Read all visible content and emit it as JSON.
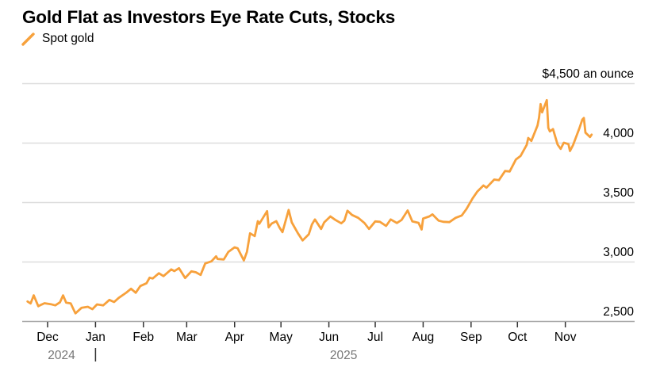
{
  "colors": {
    "accent_orange": "#F7A13C",
    "gridline": "#DDDDDD",
    "axis_line": "#A6A6A6",
    "tick_mark": "#333333",
    "label_text": "#000000",
    "year_text": "#767676"
  },
  "chart_data": {
    "type": "line",
    "title": "Gold Flat as Investors Eye Rate Cuts, Stocks",
    "grid": "horizontal",
    "legend_position": "top-left",
    "y_axis": {
      "side": "right",
      "range": [
        2450,
        4550
      ],
      "ticks": [
        {
          "value": 4500,
          "label": "$4,500 an ounce"
        },
        {
          "value": 4000,
          "label": "4,000"
        },
        {
          "value": 3500,
          "label": "3,500"
        },
        {
          "value": 3000,
          "label": "3,000"
        },
        {
          "value": 2500,
          "label": "2,500"
        }
      ]
    },
    "x_axis": {
      "start": "2024-11-18",
      "end": "2025-11-18",
      "month_ticks": [
        {
          "label": "Dec",
          "date": "2024-12-01"
        },
        {
          "label": "Jan",
          "date": "2025-01-01"
        },
        {
          "label": "Feb",
          "date": "2025-02-01"
        },
        {
          "label": "Mar",
          "date": "2025-03-01"
        },
        {
          "label": "Apr",
          "date": "2025-04-01"
        },
        {
          "label": "May",
          "date": "2025-05-01"
        },
        {
          "label": "Jun",
          "date": "2025-06-01"
        },
        {
          "label": "Jul",
          "date": "2025-07-01"
        },
        {
          "label": "Aug",
          "date": "2025-08-01"
        },
        {
          "label": "Sep",
          "date": "2025-09-01"
        },
        {
          "label": "Oct",
          "date": "2025-10-01"
        },
        {
          "label": "Nov",
          "date": "2025-11-01"
        }
      ],
      "year_labels": [
        {
          "label": "2024",
          "from": "2024-11-18",
          "to": "2025-01-01"
        },
        {
          "label": "2025",
          "from": "2025-01-01",
          "to": "2025-11-18"
        }
      ],
      "year_dividers": [
        "2025-01-01"
      ]
    },
    "series": [
      {
        "name": "Spot gold",
        "color": "#F7A13C",
        "points": [
          [
            "2024-11-18",
            2665
          ],
          [
            "2024-11-20",
            2648
          ],
          [
            "2024-11-22",
            2716
          ],
          [
            "2024-11-25",
            2625
          ],
          [
            "2024-11-27",
            2638
          ],
          [
            "2024-11-29",
            2650
          ],
          [
            "2024-12-03",
            2642
          ],
          [
            "2024-12-06",
            2632
          ],
          [
            "2024-12-09",
            2658
          ],
          [
            "2024-12-11",
            2716
          ],
          [
            "2024-12-13",
            2655
          ],
          [
            "2024-12-16",
            2648
          ],
          [
            "2024-12-18",
            2592
          ],
          [
            "2024-12-19",
            2565
          ],
          [
            "2024-12-23",
            2612
          ],
          [
            "2024-12-27",
            2620
          ],
          [
            "2024-12-30",
            2600
          ],
          [
            "2025-01-02",
            2640
          ],
          [
            "2025-01-06",
            2632
          ],
          [
            "2025-01-08",
            2655
          ],
          [
            "2025-01-10",
            2678
          ],
          [
            "2025-01-13",
            2660
          ],
          [
            "2025-01-16",
            2695
          ],
          [
            "2025-01-21",
            2740
          ],
          [
            "2025-01-24",
            2772
          ],
          [
            "2025-01-27",
            2738
          ],
          [
            "2025-01-30",
            2795
          ],
          [
            "2025-02-03",
            2818
          ],
          [
            "2025-02-05",
            2865
          ],
          [
            "2025-02-07",
            2858
          ],
          [
            "2025-02-11",
            2902
          ],
          [
            "2025-02-14",
            2878
          ],
          [
            "2025-02-19",
            2935
          ],
          [
            "2025-02-21",
            2920
          ],
          [
            "2025-02-24",
            2945
          ],
          [
            "2025-02-28",
            2862
          ],
          [
            "2025-03-04",
            2918
          ],
          [
            "2025-03-07",
            2910
          ],
          [
            "2025-03-10",
            2888
          ],
          [
            "2025-03-13",
            2985
          ],
          [
            "2025-03-17",
            3002
          ],
          [
            "2025-03-20",
            3045
          ],
          [
            "2025-03-21",
            3022
          ],
          [
            "2025-03-25",
            3018
          ],
          [
            "2025-03-28",
            3082
          ],
          [
            "2025-04-01",
            3120
          ],
          [
            "2025-04-03",
            3112
          ],
          [
            "2025-04-07",
            3010
          ],
          [
            "2025-04-09",
            3082
          ],
          [
            "2025-04-11",
            3238
          ],
          [
            "2025-04-14",
            3215
          ],
          [
            "2025-04-16",
            3340
          ],
          [
            "2025-04-17",
            3318
          ],
          [
            "2025-04-22",
            3425
          ],
          [
            "2025-04-23",
            3288
          ],
          [
            "2025-04-25",
            3320
          ],
          [
            "2025-04-28",
            3340
          ],
          [
            "2025-04-30",
            3288
          ],
          [
            "2025-05-02",
            3248
          ],
          [
            "2025-05-06",
            3435
          ],
          [
            "2025-05-08",
            3330
          ],
          [
            "2025-05-12",
            3238
          ],
          [
            "2025-05-15",
            3178
          ],
          [
            "2025-05-19",
            3230
          ],
          [
            "2025-05-21",
            3312
          ],
          [
            "2025-05-23",
            3355
          ],
          [
            "2025-05-27",
            3275
          ],
          [
            "2025-05-29",
            3330
          ],
          [
            "2025-06-02",
            3380
          ],
          [
            "2025-06-05",
            3352
          ],
          [
            "2025-06-09",
            3322
          ],
          [
            "2025-06-11",
            3345
          ],
          [
            "2025-06-13",
            3428
          ],
          [
            "2025-06-16",
            3392
          ],
          [
            "2025-06-20",
            3368
          ],
          [
            "2025-06-24",
            3325
          ],
          [
            "2025-06-27",
            3275
          ],
          [
            "2025-07-01",
            3338
          ],
          [
            "2025-07-04",
            3335
          ],
          [
            "2025-07-08",
            3300
          ],
          [
            "2025-07-11",
            3355
          ],
          [
            "2025-07-15",
            3325
          ],
          [
            "2025-07-18",
            3350
          ],
          [
            "2025-07-22",
            3430
          ],
          [
            "2025-07-25",
            3338
          ],
          [
            "2025-07-29",
            3326
          ],
          [
            "2025-07-31",
            3270
          ],
          [
            "2025-08-01",
            3362
          ],
          [
            "2025-08-05",
            3380
          ],
          [
            "2025-08-07",
            3397
          ],
          [
            "2025-08-11",
            3345
          ],
          [
            "2025-08-14",
            3335
          ],
          [
            "2025-08-18",
            3332
          ],
          [
            "2025-08-22",
            3368
          ],
          [
            "2025-08-26",
            3388
          ],
          [
            "2025-08-29",
            3442
          ],
          [
            "2025-09-02",
            3532
          ],
          [
            "2025-09-05",
            3588
          ],
          [
            "2025-09-09",
            3640
          ],
          [
            "2025-09-11",
            3622
          ],
          [
            "2025-09-16",
            3690
          ],
          [
            "2025-09-19",
            3685
          ],
          [
            "2025-09-23",
            3762
          ],
          [
            "2025-09-26",
            3758
          ],
          [
            "2025-09-30",
            3858
          ],
          [
            "2025-10-03",
            3888
          ],
          [
            "2025-10-07",
            3982
          ],
          [
            "2025-10-08",
            4040
          ],
          [
            "2025-10-10",
            4015
          ],
          [
            "2025-10-14",
            4145
          ],
          [
            "2025-10-15",
            4210
          ],
          [
            "2025-10-16",
            4325
          ],
          [
            "2025-10-17",
            4255
          ],
          [
            "2025-10-20",
            4358
          ],
          [
            "2025-10-21",
            4125
          ],
          [
            "2025-10-22",
            4095
          ],
          [
            "2025-10-24",
            4115
          ],
          [
            "2025-10-27",
            3985
          ],
          [
            "2025-10-29",
            3948
          ],
          [
            "2025-10-31",
            4000
          ],
          [
            "2025-11-03",
            3988
          ],
          [
            "2025-11-04",
            3930
          ],
          [
            "2025-11-06",
            3980
          ],
          [
            "2025-11-10",
            4118
          ],
          [
            "2025-11-12",
            4195
          ],
          [
            "2025-11-13",
            4208
          ],
          [
            "2025-11-14",
            4085
          ],
          [
            "2025-11-17",
            4048
          ],
          [
            "2025-11-18",
            4068
          ]
        ]
      }
    ]
  }
}
